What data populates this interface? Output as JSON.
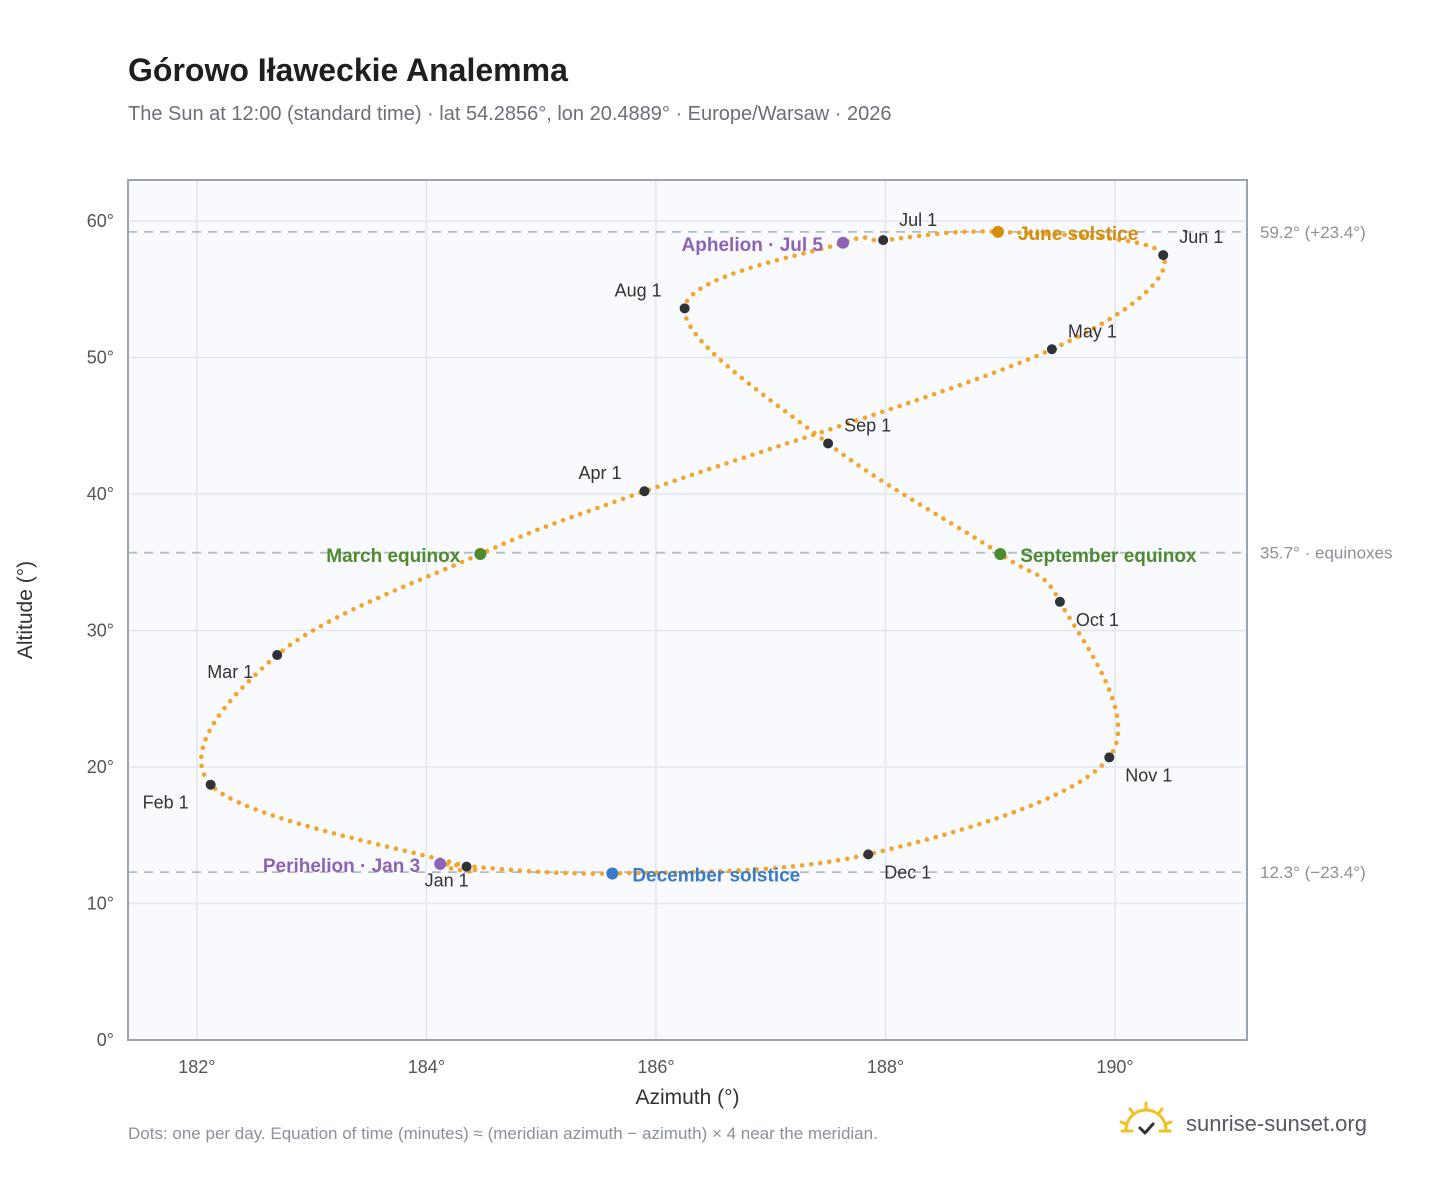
{
  "header": {
    "title": "Górowo Iławeckie Analemma",
    "subtitle": "The Sun at 12:00 (standard time) · lat 54.2856°, lon 20.4889° · Europe/Warsaw · 2026"
  },
  "footer": {
    "note": "Dots: one per day. Equation of time (minutes) ≈ (meridian azimuth − azimuth) × 4 near the meridian.",
    "brand": "sunrise-sunset.org",
    "brand_icon": "sun-logo-icon"
  },
  "colors": {
    "curve": "#f2a52b",
    "month_marker": "#2f3338",
    "solstice_june": "#d18f0c",
    "solstice_december": "#3a7bc8",
    "equinox": "#4f8a2f",
    "apsis": "#8e63b5",
    "plot_background": "#f8fafd",
    "grid": "#e2e7ee",
    "reference_line": "#b4bcc8"
  },
  "chart_data": {
    "type": "scatter",
    "xlabel": "Azimuth (°)",
    "ylabel": "Altitude (°)",
    "xlim": [
      181.4,
      191.15
    ],
    "ylim": [
      0,
      63
    ],
    "x_ticks": [
      {
        "value": 182,
        "label": "182°"
      },
      {
        "value": 184,
        "label": "184°"
      },
      {
        "value": 186,
        "label": "186°"
      },
      {
        "value": 188,
        "label": "188°"
      },
      {
        "value": 190,
        "label": "190°"
      }
    ],
    "y_ticks": [
      {
        "value": 0,
        "label": "0°"
      },
      {
        "value": 10,
        "label": "10°"
      },
      {
        "value": 20,
        "label": "20°"
      },
      {
        "value": 30,
        "label": "30°"
      },
      {
        "value": 40,
        "label": "40°"
      },
      {
        "value": 50,
        "label": "50°"
      },
      {
        "value": 60,
        "label": "60°"
      }
    ],
    "grid": true,
    "series": [
      {
        "description_only": false,
        "points": [
          {
            "x": 184.35,
            "y": 12.7
          },
          {
            "x": 182.12,
            "y": 18.7
          },
          {
            "x": 182.7,
            "y": 28.2
          },
          {
            "x": 184.47,
            "y": 35.6
          },
          {
            "x": 185.9,
            "y": 40.2
          },
          {
            "x": 189.45,
            "y": 50.6
          },
          {
            "x": 190.42,
            "y": 57.5
          },
          {
            "x": 188.98,
            "y": 59.2
          },
          {
            "x": 187.98,
            "y": 58.6
          },
          {
            "x": 187.63,
            "y": 58.4
          },
          {
            "x": 186.25,
            "y": 53.6
          },
          {
            "x": 187.5,
            "y": 43.7
          },
          {
            "x": 189.0,
            "y": 35.6
          },
          {
            "x": 189.52,
            "y": 32.1
          },
          {
            "x": 189.95,
            "y": 20.7
          },
          {
            "x": 187.85,
            "y": 13.6
          },
          {
            "x": 185.62,
            "y": 12.2
          },
          {
            "x": 184.12,
            "y": 12.9
          }
        ]
      }
    ],
    "reference_lines": [
      {
        "y": 59.2,
        "label": "59.2° (+23.4°)"
      },
      {
        "y": 35.7,
        "label": "35.7° · equinoxes"
      },
      {
        "y": 12.3,
        "label": "12.3° (−23.4°)"
      }
    ],
    "month_markers": [
      {
        "label": "Jan 1",
        "x": 184.35,
        "y": 12.7
      },
      {
        "label": "Feb 1",
        "x": 182.12,
        "y": 18.7
      },
      {
        "label": "Mar 1",
        "x": 182.7,
        "y": 28.2
      },
      {
        "label": "Apr 1",
        "x": 185.9,
        "y": 40.2
      },
      {
        "label": "May 1",
        "x": 189.45,
        "y": 50.6
      },
      {
        "label": "Jun 1",
        "x": 190.42,
        "y": 57.5
      },
      {
        "label": "Jul 1",
        "x": 187.98,
        "y": 58.6
      },
      {
        "label": "Aug 1",
        "x": 186.25,
        "y": 53.6
      },
      {
        "label": "Sep 1",
        "x": 187.5,
        "y": 43.7
      },
      {
        "label": "Oct 1",
        "x": 189.52,
        "y": 32.1
      },
      {
        "label": "Nov 1",
        "x": 189.95,
        "y": 20.7
      },
      {
        "label": "Dec 1",
        "x": 187.85,
        "y": 13.6
      }
    ],
    "events": [
      {
        "label": "June solstice",
        "x": 188.98,
        "y": 59.2,
        "kind": "solstice_june"
      },
      {
        "label": "December solstice",
        "x": 185.62,
        "y": 12.2,
        "kind": "solstice_december"
      },
      {
        "label": "March equinox",
        "x": 184.47,
        "y": 35.6,
        "kind": "equinox"
      },
      {
        "label": "September equinox",
        "x": 189.0,
        "y": 35.6,
        "kind": "equinox"
      },
      {
        "label": "Aphelion · Jul 5",
        "x": 187.63,
        "y": 58.4,
        "kind": "apsis"
      },
      {
        "label": "Perihelion · Jan 3",
        "x": 184.12,
        "y": 12.9,
        "kind": "apsis"
      }
    ]
  }
}
